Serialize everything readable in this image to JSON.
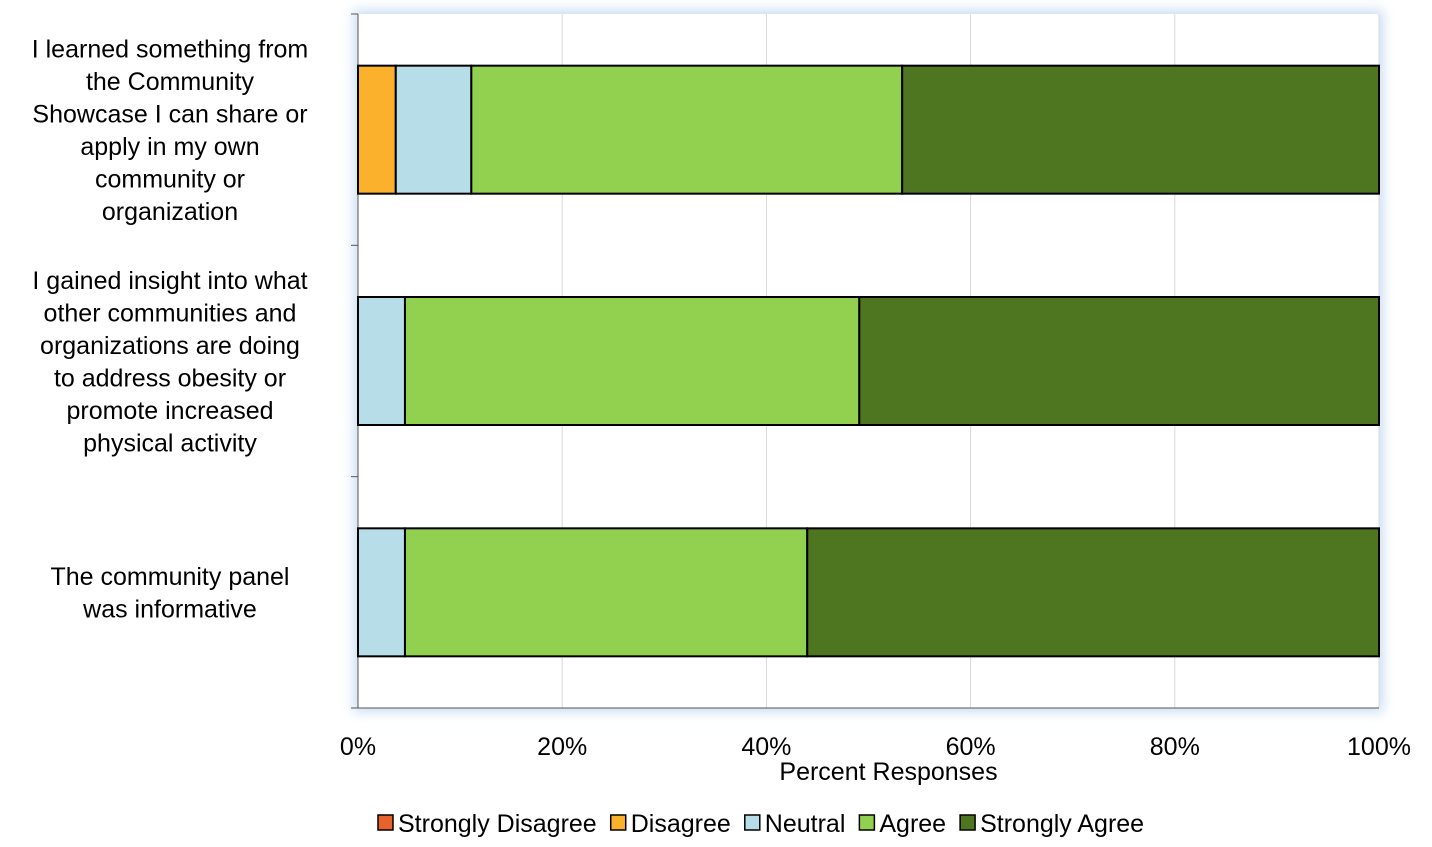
{
  "chart_data": {
    "type": "bar",
    "orientation": "horizontal",
    "stacked": "percent",
    "categories": [
      "I learned something from the Community Showcase I can share or apply in my own community or organization",
      "I gained insight into what other communities and organizations are doing to address obesity or promote increased physical activity",
      "The community panel was informative"
    ],
    "category_lines": [
      [
        "I learned something from",
        "the Community",
        "Showcase I can share or",
        "apply in my own",
        "community or",
        "organization"
      ],
      [
        "I gained insight into what",
        "other communities and",
        "organizations are doing",
        "to address obesity or",
        "promote increased",
        "physical activity"
      ],
      [
        "The community panel",
        "was informative"
      ]
    ],
    "series": [
      {
        "name": "Strongly Disagree",
        "color": "#E8622C",
        "values": [
          0,
          0,
          0
        ]
      },
      {
        "name": "Disagree",
        "color": "#FBB12B",
        "values": [
          3.7,
          0,
          0
        ]
      },
      {
        "name": "Neutral",
        "color": "#B7DDE8",
        "values": [
          7.4,
          4.6,
          4.6
        ]
      },
      {
        "name": "Agree",
        "color": "#92D050",
        "values": [
          42.2,
          44.5,
          39.4
        ]
      },
      {
        "name": "Strongly Agree",
        "color": "#4E7621",
        "values": [
          46.7,
          50.9,
          56.0
        ]
      }
    ],
    "xlabel": "Percent Responses",
    "xlim": [
      0,
      100
    ],
    "xticks": [
      "0%",
      "20%",
      "40%",
      "60%",
      "80%",
      "100%"
    ],
    "grid": true,
    "legend_position": "bottom"
  }
}
